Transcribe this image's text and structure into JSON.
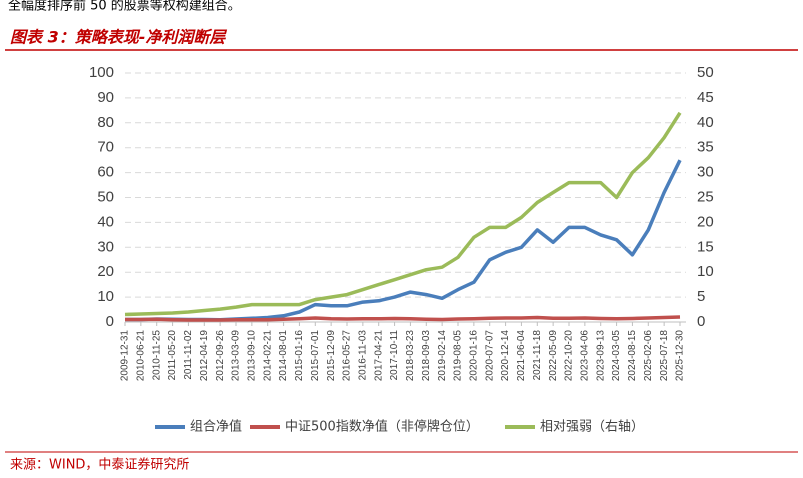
{
  "header": {
    "intro": "全幅度排序前 50 的股票等权构建组合。"
  },
  "source": "来源：WIND，中泰证券研究所",
  "chart_data": {
    "type": "line",
    "title": "图表 3：策略表现-净利润断层",
    "categories": [
      "2009-12-31",
      "2010-06-21",
      "2010-11-25",
      "2011-05-20",
      "2011-11-02",
      "2012-04-19",
      "2012-09-26",
      "2013-03-09",
      "2013-09-10",
      "2014-02-21",
      "2014-08-01",
      "2015-01-16",
      "2015-07-01",
      "2015-12-09",
      "2016-05-27",
      "2016-11-03",
      "2017-04-21",
      "2017-10-11",
      "2018-03-23",
      "2018-09-03",
      "2019-02-14",
      "2019-08-05",
      "2020-01-16",
      "2020-07-07",
      "2020-12-14",
      "2021-06-04",
      "2021-11-18",
      "2022-05-09",
      "2022-10-20",
      "2023-04-06",
      "2023-09-13",
      "2024-03-05",
      "2024-08-15",
      "2025-02-06",
      "2025-07-18",
      "2025-12-30"
    ],
    "series": [
      {
        "name": "组合净值",
        "color": "#4a7ebb",
        "values": [
          1,
          1,
          1.2,
          1.1,
          1,
          1,
          0.9,
          1.2,
          1.5,
          1.8,
          2.5,
          4,
          7,
          6.5,
          6.5,
          8,
          8.5,
          10,
          12,
          11,
          9.5,
          13,
          16,
          25,
          28,
          30,
          37,
          32,
          38,
          38,
          35,
          33,
          27,
          37,
          52,
          65
        ]
      },
      {
        "name": "中证500指数净值（非停牌仓位）",
        "color": "#c0504d",
        "values": [
          1,
          1,
          1.1,
          0.9,
          0.8,
          0.8,
          0.8,
          0.9,
          0.9,
          0.9,
          1.1,
          1.3,
          1.6,
          1.3,
          1.2,
          1.3,
          1.3,
          1.4,
          1.3,
          1.1,
          1,
          1.2,
          1.3,
          1.5,
          1.6,
          1.6,
          1.8,
          1.5,
          1.5,
          1.6,
          1.4,
          1.3,
          1.4,
          1.6,
          1.8,
          2
        ]
      },
      {
        "name": "相对强弱（右轴）",
        "color": "#9bbb59",
        "axis": "y2",
        "values": [
          1.5,
          1.6,
          1.7,
          1.8,
          2,
          2.3,
          2.6,
          3,
          3.5,
          3.5,
          3.5,
          3.5,
          4.5,
          5,
          5.5,
          6.5,
          7.5,
          8.5,
          9.5,
          10.5,
          11,
          13,
          17,
          19,
          19,
          21,
          24,
          26,
          28,
          28,
          28,
          25,
          30,
          33,
          37,
          42
        ]
      }
    ],
    "ylim": [
      0,
      100
    ],
    "yticks": [
      0,
      10,
      20,
      30,
      40,
      50,
      60,
      70,
      80,
      90,
      100
    ],
    "y2lim": [
      0,
      50
    ],
    "y2ticks": [
      0,
      5,
      10,
      15,
      20,
      25,
      30,
      35,
      40,
      45,
      50
    ],
    "grid": true
  }
}
